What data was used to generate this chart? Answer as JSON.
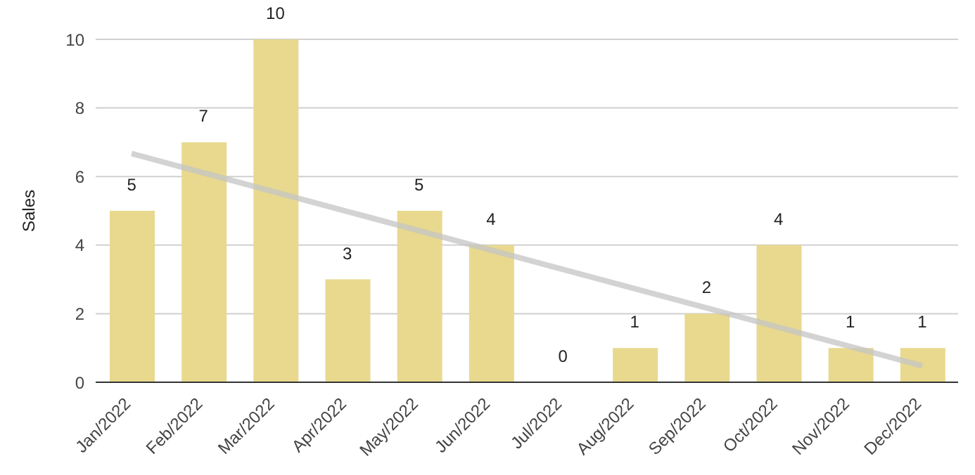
{
  "chart_data": {
    "type": "bar",
    "ylabel": "Sales",
    "categories": [
      "Jan/2022",
      "Feb/2022",
      "Mar/2022",
      "Apr/2022",
      "May/2022",
      "Jun/2022",
      "Jul/2022",
      "Aug/2022",
      "Sep/2022",
      "Oct/2022",
      "Nov/2022",
      "Dec/2022"
    ],
    "series": [
      {
        "color": "#e8d98f",
        "values": [
          5,
          7,
          10,
          3,
          5,
          4,
          0,
          1,
          2,
          4,
          1,
          1
        ],
        "value_labels": [
          "5",
          "7",
          "10",
          "3",
          "5",
          "4",
          "0",
          "1",
          "2",
          "4",
          "1",
          "1"
        ]
      },
      {
        "type": "line",
        "color": "#c4c4c4",
        "x": [
          "Jan/2022",
          "Dec/2022"
        ],
        "values": [
          6.67,
          0.48
        ]
      }
    ],
    "ylim": [
      0,
      10
    ],
    "yticks": [
      0,
      2,
      4,
      6,
      8,
      10
    ],
    "grid": "y",
    "legend": false
  }
}
